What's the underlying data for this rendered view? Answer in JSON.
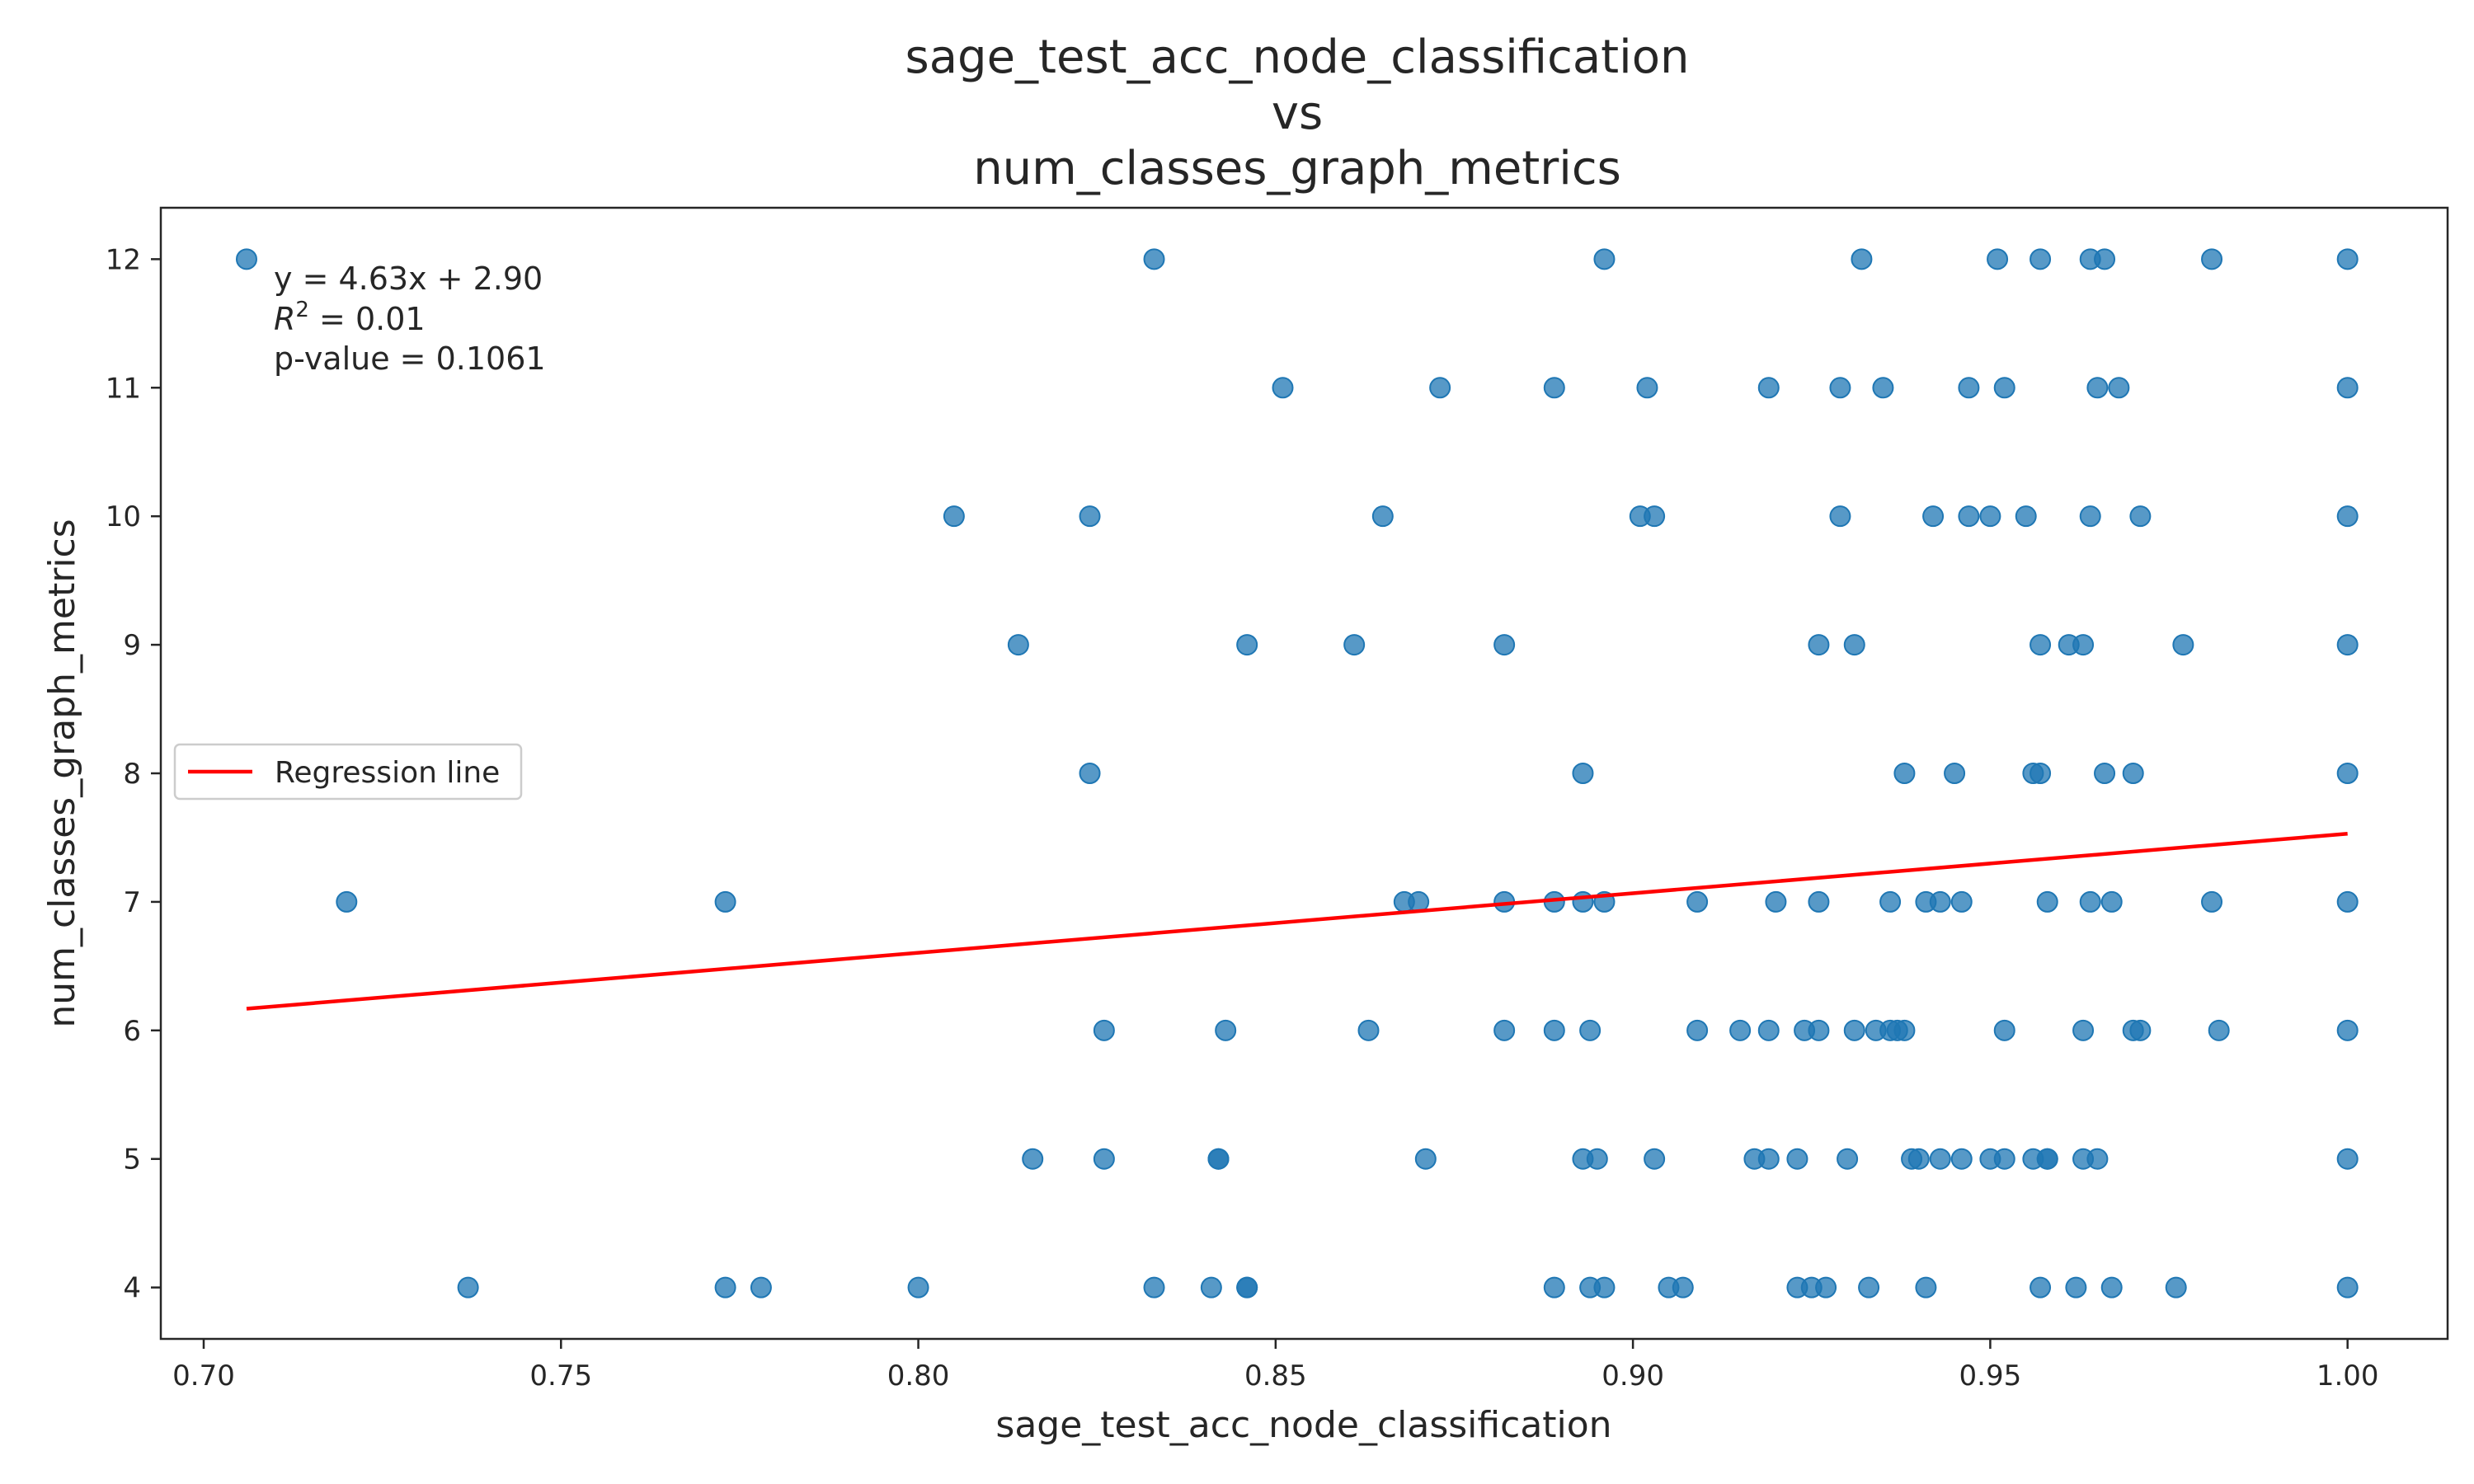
{
  "chart_data": {
    "type": "scatter",
    "title": [
      "sage_test_acc_node_classification",
      "vs",
      "num_classes_graph_metrics"
    ],
    "xlabel": "sage_test_acc_node_classification",
    "ylabel": "num_classes_graph_metrics",
    "xlim": [
      0.694,
      1.014
    ],
    "ylim": [
      3.6,
      12.4
    ],
    "xticks": [
      "0.70",
      "0.75",
      "0.80",
      "0.85",
      "0.90",
      "0.95",
      "1.00"
    ],
    "xtick_values": [
      0.7,
      0.75,
      0.8,
      0.85,
      0.9,
      0.95,
      1.0
    ],
    "yticks": [
      "4",
      "5",
      "6",
      "7",
      "8",
      "9",
      "10",
      "11",
      "12"
    ],
    "ytick_values": [
      4,
      5,
      6,
      7,
      8,
      9,
      10,
      11,
      12
    ],
    "grid": false,
    "legend": {
      "location": "center-left",
      "entries": [
        "Regression line"
      ]
    },
    "annotation": {
      "equation": "y = 4.63x + 2.90",
      "r2_value": " = 0.01",
      "pvalue": "p-value = 0.1061"
    },
    "colors": {
      "points": "#1f77b4",
      "regression": "#ff0000"
    },
    "regression": {
      "slope": 4.63,
      "intercept": 2.9,
      "x_range": [
        0.706,
        1.0
      ]
    },
    "series": [
      {
        "points": [
          [
            0.706,
            12
          ],
          [
            0.833,
            12
          ],
          [
            0.896,
            12
          ],
          [
            0.932,
            12
          ],
          [
            0.951,
            12
          ],
          [
            0.957,
            12
          ],
          [
            0.964,
            12
          ],
          [
            0.966,
            12
          ],
          [
            0.981,
            12
          ],
          [
            1.0,
            12
          ],
          [
            0.851,
            11
          ],
          [
            0.873,
            11
          ],
          [
            0.889,
            11
          ],
          [
            0.902,
            11
          ],
          [
            0.919,
            11
          ],
          [
            0.929,
            11
          ],
          [
            0.935,
            11
          ],
          [
            0.947,
            11
          ],
          [
            0.952,
            11
          ],
          [
            0.965,
            11
          ],
          [
            0.968,
            11
          ],
          [
            1.0,
            11
          ],
          [
            0.805,
            10
          ],
          [
            0.824,
            10
          ],
          [
            0.865,
            10
          ],
          [
            0.901,
            10
          ],
          [
            0.903,
            10
          ],
          [
            0.929,
            10
          ],
          [
            0.942,
            10
          ],
          [
            0.947,
            10
          ],
          [
            0.95,
            10
          ],
          [
            0.955,
            10
          ],
          [
            0.964,
            10
          ],
          [
            0.971,
            10
          ],
          [
            1.0,
            10
          ],
          [
            0.814,
            9
          ],
          [
            0.846,
            9
          ],
          [
            0.861,
            9
          ],
          [
            0.882,
            9
          ],
          [
            0.926,
            9
          ],
          [
            0.931,
            9
          ],
          [
            0.957,
            9
          ],
          [
            0.961,
            9
          ],
          [
            0.963,
            9
          ],
          [
            0.977,
            9
          ],
          [
            1.0,
            9
          ],
          [
            0.824,
            8
          ],
          [
            0.893,
            8
          ],
          [
            0.938,
            8
          ],
          [
            0.945,
            8
          ],
          [
            0.956,
            8
          ],
          [
            0.957,
            8
          ],
          [
            0.966,
            8
          ],
          [
            0.97,
            8
          ],
          [
            1.0,
            8
          ],
          [
            0.72,
            7
          ],
          [
            0.773,
            7
          ],
          [
            0.868,
            7
          ],
          [
            0.87,
            7
          ],
          [
            0.882,
            7
          ],
          [
            0.889,
            7
          ],
          [
            0.893,
            7
          ],
          [
            0.896,
            7
          ],
          [
            0.909,
            7
          ],
          [
            0.92,
            7
          ],
          [
            0.926,
            7
          ],
          [
            0.936,
            7
          ],
          [
            0.941,
            7
          ],
          [
            0.943,
            7
          ],
          [
            0.946,
            7
          ],
          [
            0.958,
            7
          ],
          [
            0.964,
            7
          ],
          [
            0.967,
            7
          ],
          [
            0.981,
            7
          ],
          [
            1.0,
            7
          ],
          [
            0.826,
            6
          ],
          [
            0.843,
            6
          ],
          [
            0.863,
            6
          ],
          [
            0.882,
            6
          ],
          [
            0.889,
            6
          ],
          [
            0.894,
            6
          ],
          [
            0.909,
            6
          ],
          [
            0.915,
            6
          ],
          [
            0.919,
            6
          ],
          [
            0.924,
            6
          ],
          [
            0.926,
            6
          ],
          [
            0.931,
            6
          ],
          [
            0.934,
            6
          ],
          [
            0.936,
            6
          ],
          [
            0.937,
            6
          ],
          [
            0.938,
            6
          ],
          [
            0.952,
            6
          ],
          [
            0.963,
            6
          ],
          [
            0.97,
            6
          ],
          [
            0.971,
            6
          ],
          [
            0.982,
            6
          ],
          [
            1.0,
            6
          ],
          [
            0.816,
            5
          ],
          [
            0.826,
            5
          ],
          [
            0.842,
            5
          ],
          [
            0.842,
            5
          ],
          [
            0.871,
            5
          ],
          [
            0.893,
            5
          ],
          [
            0.895,
            5
          ],
          [
            0.903,
            5
          ],
          [
            0.917,
            5
          ],
          [
            0.919,
            5
          ],
          [
            0.923,
            5
          ],
          [
            0.93,
            5
          ],
          [
            0.939,
            5
          ],
          [
            0.94,
            5
          ],
          [
            0.943,
            5
          ],
          [
            0.946,
            5
          ],
          [
            0.95,
            5
          ],
          [
            0.952,
            5
          ],
          [
            0.956,
            5
          ],
          [
            0.958,
            5
          ],
          [
            0.958,
            5
          ],
          [
            0.963,
            5
          ],
          [
            0.965,
            5
          ],
          [
            1.0,
            5
          ],
          [
            0.737,
            4
          ],
          [
            0.773,
            4
          ],
          [
            0.778,
            4
          ],
          [
            0.8,
            4
          ],
          [
            0.833,
            4
          ],
          [
            0.841,
            4
          ],
          [
            0.846,
            4
          ],
          [
            0.846,
            4
          ],
          [
            0.889,
            4
          ],
          [
            0.894,
            4
          ],
          [
            0.896,
            4
          ],
          [
            0.905,
            4
          ],
          [
            0.907,
            4
          ],
          [
            0.923,
            4
          ],
          [
            0.925,
            4
          ],
          [
            0.927,
            4
          ],
          [
            0.933,
            4
          ],
          [
            0.941,
            4
          ],
          [
            0.957,
            4
          ],
          [
            0.962,
            4
          ],
          [
            0.967,
            4
          ],
          [
            0.976,
            4
          ],
          [
            1.0,
            4
          ]
        ]
      }
    ]
  }
}
